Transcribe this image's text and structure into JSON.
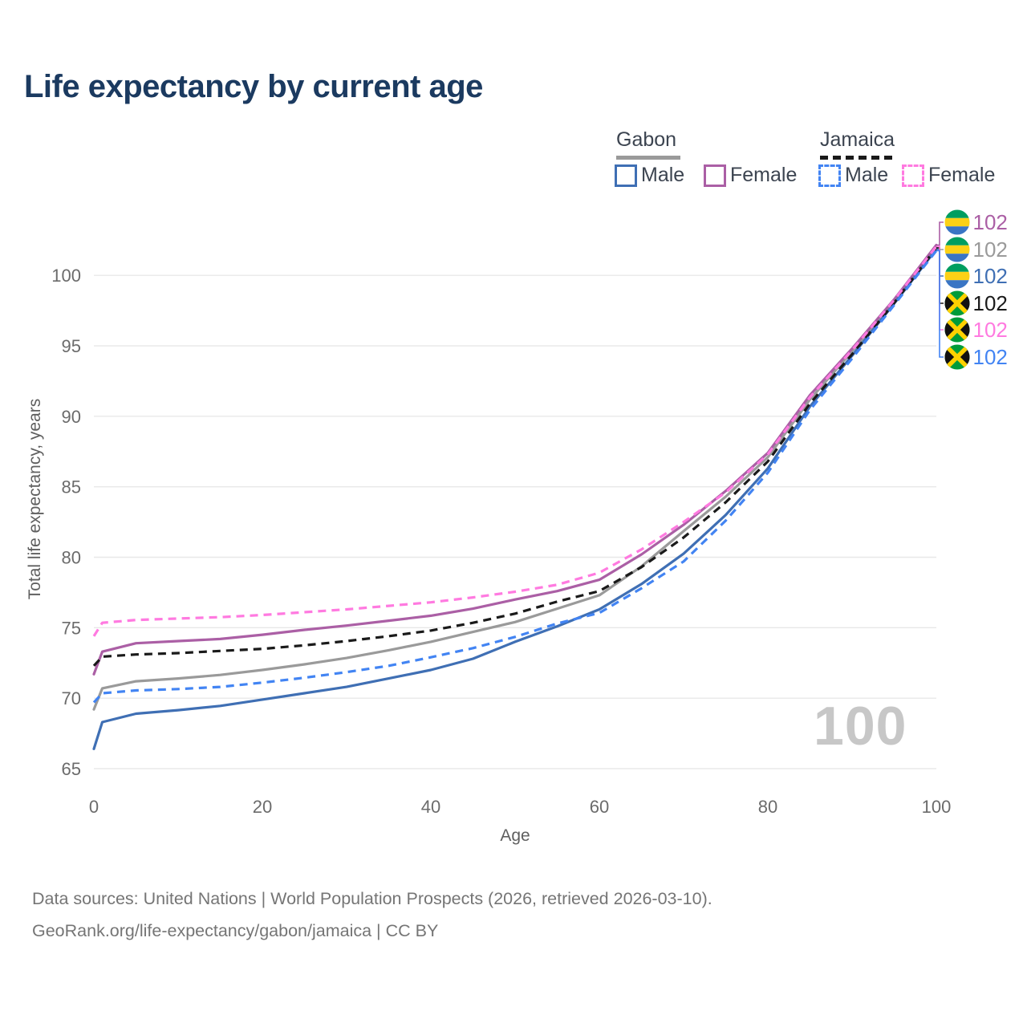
{
  "title": "Life expectancy by current age",
  "legend": {
    "groups": [
      {
        "label": "Gabon",
        "line_color": "#9a9a9a",
        "line_style": "solid"
      },
      {
        "label": "Jamaica",
        "line_color": "#1a1a1a",
        "line_style": "dashed"
      }
    ],
    "items": [
      {
        "label": "Male",
        "color": "#3f6fb4",
        "dashed": false
      },
      {
        "label": "Female",
        "color": "#ab5fa5",
        "dashed": false
      },
      {
        "label": "Male",
        "color": "#4284f3",
        "dashed": true
      },
      {
        "label": "Female",
        "color": "#ff7ae0",
        "dashed": true
      }
    ]
  },
  "age_indicator": "100",
  "footer": {
    "line1": "Data sources: United Nations | World Population Prospects (2026, retrieved 2026-03-10).",
    "line2": "GeoRank.org/life-expectancy/gabon/jamaica | CC BY"
  },
  "flags": {
    "gabon": {
      "green": "#009e60",
      "yellow": "#fcd116",
      "blue": "#3a75c4"
    },
    "jamaica": {
      "green": "#009b3a",
      "gold": "#fed100",
      "black": "#111111"
    }
  },
  "chart_data": {
    "type": "line",
    "title": "Life expectancy by current age",
    "xlabel": "Age",
    "ylabel": "Total life expectancy, years",
    "xlim": [
      0,
      100
    ],
    "ylim": [
      65,
      102.5
    ],
    "xticks": [
      0,
      20,
      40,
      60,
      80,
      100
    ],
    "yticks": [
      65,
      70,
      75,
      80,
      85,
      90,
      95,
      100
    ],
    "grid": "horizontal",
    "legend_position": "top-right",
    "x": [
      0,
      1,
      5,
      10,
      15,
      20,
      25,
      30,
      35,
      40,
      45,
      50,
      55,
      60,
      65,
      70,
      75,
      80,
      85,
      90,
      95,
      100
    ],
    "series": [
      {
        "id": "gabon-total",
        "country": "Gabon",
        "sex": "Both",
        "name": "Gabon",
        "color": "#9a9a9a",
        "dashed": false,
        "row": 1,
        "flag": "gabon",
        "end_label": "102",
        "values": [
          69.2,
          70.7,
          71.2,
          71.4,
          71.65,
          72.0,
          72.4,
          72.85,
          73.4,
          74.0,
          74.7,
          75.4,
          76.35,
          77.3,
          79.35,
          81.85,
          84.3,
          87.1,
          91.2,
          94.6,
          98.2,
          102.0
        ]
      },
      {
        "id": "gabon-female",
        "country": "Gabon",
        "sex": "Female",
        "name": "Female",
        "color": "#ab5fa5",
        "dashed": false,
        "row": 0,
        "flag": "gabon",
        "end_label": "102",
        "values": [
          71.7,
          73.3,
          73.9,
          74.05,
          74.2,
          74.5,
          74.85,
          75.15,
          75.5,
          75.85,
          76.35,
          77.0,
          77.6,
          78.4,
          80.2,
          82.3,
          84.7,
          87.4,
          91.5,
          94.8,
          98.3,
          102.15
        ]
      },
      {
        "id": "gabon-male",
        "country": "Gabon",
        "sex": "Male",
        "name": "Male",
        "color": "#3f6fb4",
        "dashed": false,
        "row": 2,
        "flag": "gabon",
        "end_label": "102",
        "values": [
          66.4,
          68.3,
          68.9,
          69.15,
          69.45,
          69.9,
          70.35,
          70.8,
          71.4,
          72.0,
          72.8,
          74.0,
          75.1,
          76.3,
          78.1,
          80.25,
          83.0,
          86.3,
          90.7,
          94.3,
          98.0,
          101.85
        ]
      },
      {
        "id": "jamaica-total",
        "country": "Jamaica",
        "sex": "Both",
        "name": "Jamaica",
        "color": "#1a1a1a",
        "dashed": true,
        "row": 3,
        "flag": "jamaica",
        "end_label": "102",
        "values": [
          72.3,
          72.95,
          73.1,
          73.2,
          73.35,
          73.5,
          73.75,
          74.05,
          74.4,
          74.8,
          75.35,
          76.0,
          76.85,
          77.6,
          79.3,
          81.4,
          83.9,
          86.8,
          90.9,
          94.4,
          98.05,
          101.95
        ]
      },
      {
        "id": "jamaica-female",
        "country": "Jamaica",
        "sex": "Female",
        "name": "Female",
        "color": "#ff7ae0",
        "dashed": true,
        "row": 4,
        "flag": "jamaica",
        "end_label": "102",
        "values": [
          74.4,
          75.35,
          75.55,
          75.65,
          75.75,
          75.9,
          76.1,
          76.3,
          76.55,
          76.8,
          77.15,
          77.55,
          78.05,
          78.9,
          80.55,
          82.5,
          84.6,
          87.3,
          91.35,
          94.7,
          98.25,
          102.05
        ]
      },
      {
        "id": "jamaica-male",
        "country": "Jamaica",
        "sex": "Male",
        "name": "Male",
        "color": "#4284f3",
        "dashed": true,
        "row": 5,
        "flag": "jamaica",
        "end_label": "102",
        "values": [
          69.7,
          70.35,
          70.55,
          70.65,
          70.8,
          71.1,
          71.45,
          71.85,
          72.3,
          72.9,
          73.55,
          74.35,
          75.3,
          76.05,
          77.8,
          79.7,
          82.6,
          86.0,
          90.45,
          94.1,
          97.9,
          101.75
        ]
      }
    ]
  }
}
